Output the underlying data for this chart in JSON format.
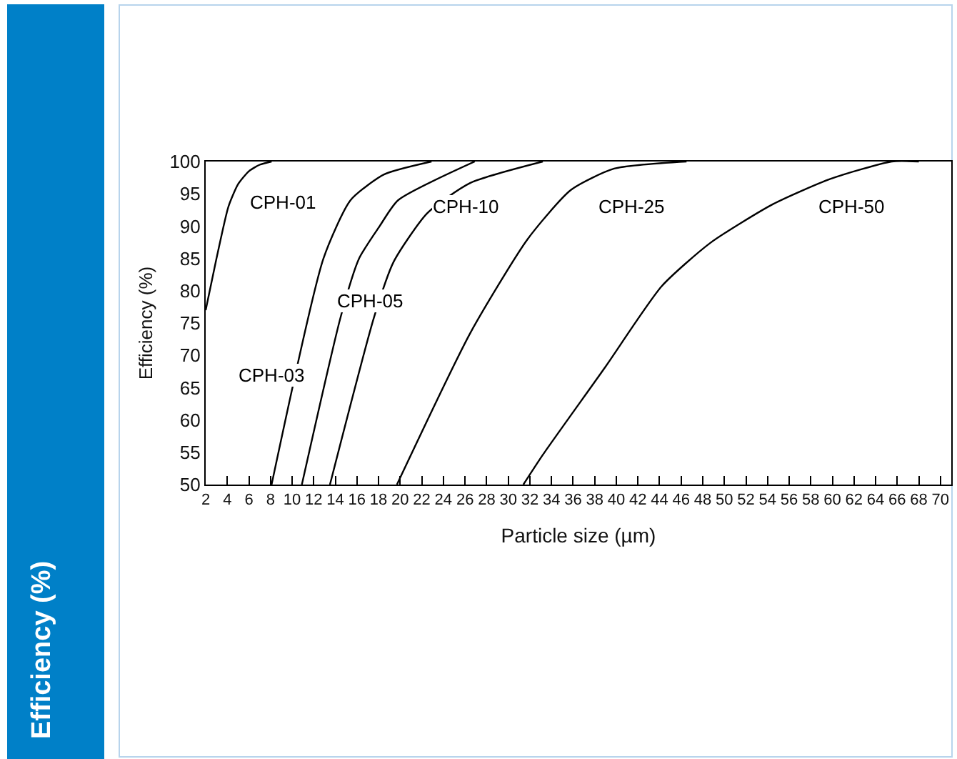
{
  "chart_data": {
    "type": "line",
    "xlabel": "Particle size (µm)",
    "ylabel": "Efficiency (%)",
    "xlim": [
      2,
      71
    ],
    "ylim": [
      50,
      100
    ],
    "xticks": [
      2,
      4,
      6,
      8,
      10,
      12,
      14,
      16,
      18,
      20,
      22,
      24,
      26,
      28,
      30,
      32,
      34,
      36,
      38,
      40,
      42,
      44,
      46,
      48,
      50,
      52,
      54,
      56,
      58,
      60,
      62,
      64,
      66,
      68,
      70
    ],
    "yticks": [
      50,
      55,
      60,
      65,
      70,
      75,
      80,
      85,
      90,
      95,
      100
    ],
    "grid": false,
    "marker": "none",
    "line_style": "solid",
    "series": [
      {
        "name": "CPH-01",
        "color": "#000000",
        "x": [
          2,
          3,
          4.1,
          5,
          6,
          7,
          8.1
        ],
        "values": [
          77,
          85,
          93,
          96.5,
          98.5,
          99.5,
          100
        ]
      },
      {
        "name": "CPH-03",
        "color": "#000000",
        "x": [
          8.1,
          12.9,
          15.4,
          18.5,
          22.9
        ],
        "values": [
          50,
          85,
          94,
          98,
          100
        ]
      },
      {
        "name": "CPH-05",
        "color": "#000000",
        "x": [
          10.9,
          14.5,
          16.2,
          18.1,
          19.8,
          26.9
        ],
        "values": [
          50,
          76,
          85,
          90,
          94,
          100
        ]
      },
      {
        "name": "CPH-10",
        "color": "#000000",
        "x": [
          13.5,
          17.6,
          19.4,
          22.5,
          26.5,
          33.2
        ],
        "values": [
          50,
          76,
          84.5,
          92,
          96.7,
          100
        ]
      },
      {
        "name": "CPH-25",
        "color": "#000000",
        "x": [
          19.7,
          26.5,
          31.8,
          35.8,
          39.8,
          46.5
        ],
        "values": [
          50,
          73.5,
          88,
          95.6,
          98.9,
          100
        ]
      },
      {
        "name": "CPH-50",
        "color": "#000000",
        "x": [
          31.4,
          33.2,
          38.9,
          44.2,
          48.7,
          54.5,
          59.8,
          65.5,
          68
        ],
        "values": [
          50,
          54.6,
          68,
          80.7,
          87.4,
          93.4,
          97.3,
          100,
          100
        ]
      }
    ],
    "annotations": [
      "Efficiency (%)"
    ]
  }
}
